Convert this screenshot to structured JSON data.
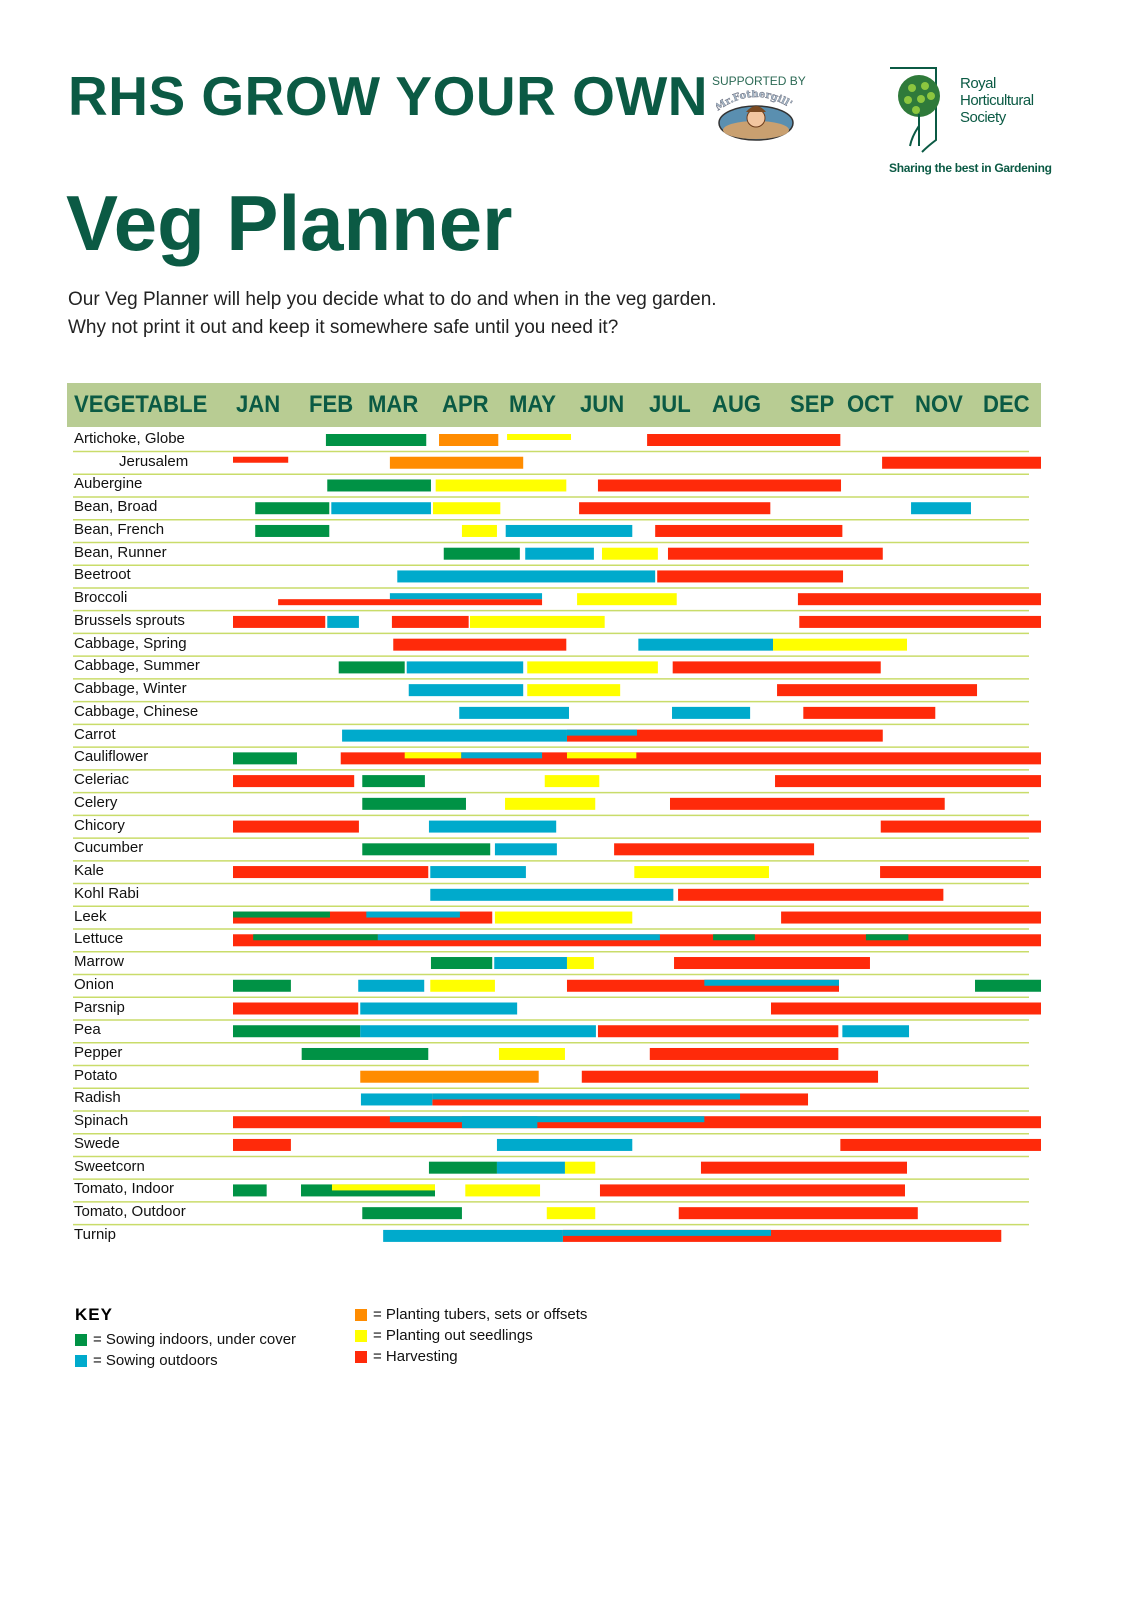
{
  "header": {
    "title": "RHS GROW YOUR OWN",
    "subtitle": "Veg Planner",
    "intro_lines": [
      "Our Veg Planner will help you decide what to do and when in the veg garden.",
      "Why not print it out and keep it somewhere safe until you need it?"
    ],
    "supported_by": "SUPPORTED BY",
    "sponsor_logo_text": "Mr.Fothergill's",
    "rhs_name_lines": [
      "Royal",
      "Horticultural",
      "Society"
    ],
    "rhs_tagline": "Sharing the best in Gardening"
  },
  "colors": {
    "header_band": "#b8cc93",
    "title_green": "#0b5a44",
    "row_divider": "#c9dc6a",
    "si": "#009245",
    "so": "#00aacc",
    "pt": "#ff8c00",
    "po": "#ffff00",
    "h": "#ff2a0a"
  },
  "chart_data": {
    "type": "gantt",
    "title": "Veg Planner",
    "column_header": "VEGETABLE",
    "months": [
      "JAN",
      "FEB",
      "MAR",
      "APR",
      "MAY",
      "JUN",
      "JUL",
      "AUG",
      "SEP",
      "OCT",
      "NOV",
      "DEC"
    ],
    "xlim_months": [
      0,
      12
    ],
    "activities": {
      "si": "Sowing indoors, under cover",
      "so": "Sowing outdoors",
      "pt": "Planting tubers, sets or offsets",
      "po": "Planting out seedlings",
      "h": "Harvesting"
    },
    "bar_format": "[activity, start_month, end_month, band(f=full,t=top half,b=bottom half)]",
    "rows": [
      {
        "name": "Artichoke, Globe",
        "bars": [
          [
            "si",
            1.38,
            2.87,
            "f"
          ],
          [
            "pt",
            3.06,
            3.94,
            "f"
          ],
          [
            "po",
            4.07,
            5.02,
            "t"
          ],
          [
            "h",
            6.15,
            9.02,
            "f"
          ]
        ]
      },
      {
        "name": "Jerusalem",
        "indent": true,
        "bars": [
          [
            "h",
            0,
            0.82,
            "t"
          ],
          [
            "pt",
            2.33,
            4.31,
            "f"
          ],
          [
            "h",
            9.64,
            12,
            "f"
          ]
        ]
      },
      {
        "name": "Aubergine",
        "bars": [
          [
            "si",
            1.4,
            2.94,
            "f"
          ],
          [
            "po",
            3.01,
            4.95,
            "f"
          ],
          [
            "h",
            5.42,
            9.03,
            "f"
          ]
        ]
      },
      {
        "name": "Bean, Broad",
        "bars": [
          [
            "si",
            0.33,
            1.43,
            "f"
          ],
          [
            "so",
            1.46,
            2.94,
            "f"
          ],
          [
            "po",
            2.97,
            3.97,
            "f"
          ],
          [
            "h",
            5.14,
            7.98,
            "f"
          ],
          [
            "so",
            10.07,
            10.96,
            "f"
          ]
        ]
      },
      {
        "name": "Bean, French",
        "bars": [
          [
            "si",
            0.33,
            1.43,
            "f"
          ],
          [
            "po",
            3.4,
            3.92,
            "f"
          ],
          [
            "so",
            4.05,
            5.93,
            "f"
          ],
          [
            "h",
            6.27,
            9.05,
            "f"
          ]
        ]
      },
      {
        "name": "Bean, Runner",
        "bars": [
          [
            "si",
            3.13,
            4.26,
            "f"
          ],
          [
            "so",
            4.34,
            5.36,
            "f"
          ],
          [
            "po",
            5.48,
            6.31,
            "f"
          ],
          [
            "h",
            6.46,
            9.65,
            "f"
          ]
        ]
      },
      {
        "name": "Beetroot",
        "bars": [
          [
            "so",
            2.44,
            6.27,
            "f"
          ],
          [
            "h",
            6.3,
            9.06,
            "f"
          ]
        ]
      },
      {
        "name": "Broccoli",
        "bars": [
          [
            "h",
            0.67,
            4.59,
            "b"
          ],
          [
            "so",
            2.33,
            4.59,
            "t"
          ],
          [
            "po",
            5.11,
            6.59,
            "f"
          ],
          [
            "h",
            8.39,
            12,
            "f"
          ]
        ]
      },
      {
        "name": "Brussels sprouts",
        "bars": [
          [
            "h",
            0,
            1.37,
            "f"
          ],
          [
            "so",
            1.4,
            1.87,
            "f"
          ],
          [
            "h",
            2.36,
            3.5,
            "f"
          ],
          [
            "po",
            3.52,
            5.52,
            "f"
          ],
          [
            "h",
            8.41,
            12,
            "f"
          ]
        ]
      },
      {
        "name": "Cabbage, Spring",
        "bars": [
          [
            "h",
            2.38,
            4.95,
            "f"
          ],
          [
            "so",
            6.02,
            8.02,
            "f"
          ],
          [
            "po",
            8.02,
            10.01,
            "f"
          ]
        ]
      },
      {
        "name": "Cabbage, Summer",
        "bars": [
          [
            "si",
            1.57,
            2.55,
            "f"
          ],
          [
            "so",
            2.58,
            4.31,
            "f"
          ],
          [
            "po",
            4.37,
            6.31,
            "f"
          ],
          [
            "h",
            6.53,
            9.62,
            "f"
          ]
        ]
      },
      {
        "name": "Cabbage, Winter",
        "bars": [
          [
            "so",
            2.61,
            4.31,
            "f"
          ],
          [
            "po",
            4.37,
            5.75,
            "f"
          ],
          [
            "h",
            8.08,
            11.05,
            "f"
          ]
        ]
      },
      {
        "name": "Cabbage, Chinese",
        "bars": [
          [
            "so",
            3.36,
            4.99,
            "f"
          ],
          [
            "so",
            6.52,
            7.68,
            "f"
          ],
          [
            "h",
            8.47,
            10.43,
            "f"
          ]
        ]
      },
      {
        "name": "Carrot",
        "bars": [
          [
            "h",
            4.96,
            9.65,
            "f"
          ],
          [
            "so",
            1.62,
            4.96,
            "f"
          ],
          [
            "so",
            4.96,
            6.0,
            "t"
          ]
        ]
      },
      {
        "name": "Cauliflower",
        "bars": [
          [
            "si",
            0,
            0.95,
            "f"
          ],
          [
            "h",
            1.6,
            12,
            "f"
          ],
          [
            "po",
            2.55,
            3.39,
            "t"
          ],
          [
            "so",
            3.39,
            4.59,
            "t"
          ],
          [
            "po",
            4.96,
            5.99,
            "t"
          ]
        ]
      },
      {
        "name": "Celeriac",
        "bars": [
          [
            "h",
            0,
            1.8,
            "f"
          ],
          [
            "si",
            1.92,
            2.85,
            "f"
          ],
          [
            "po",
            4.63,
            5.44,
            "f"
          ],
          [
            "h",
            8.05,
            12,
            "f"
          ]
        ]
      },
      {
        "name": "Celery",
        "bars": [
          [
            "si",
            1.92,
            3.46,
            "f"
          ],
          [
            "po",
            4.04,
            5.38,
            "f"
          ],
          [
            "h",
            6.49,
            10.57,
            "f"
          ]
        ]
      },
      {
        "name": "Chicory",
        "bars": [
          [
            "h",
            0,
            1.87,
            "f"
          ],
          [
            "so",
            2.91,
            4.8,
            "f"
          ],
          [
            "h",
            9.62,
            12,
            "f"
          ]
        ]
      },
      {
        "name": "Cucumber",
        "bars": [
          [
            "si",
            1.92,
            3.82,
            "f"
          ],
          [
            "so",
            3.89,
            4.81,
            "f"
          ],
          [
            "h",
            5.66,
            8.63,
            "f"
          ]
        ]
      },
      {
        "name": "Kale",
        "bars": [
          [
            "h",
            0,
            2.9,
            "f"
          ],
          [
            "so",
            2.93,
            4.35,
            "f"
          ],
          [
            "po",
            5.96,
            7.96,
            "f"
          ],
          [
            "h",
            9.61,
            12,
            "f"
          ]
        ]
      },
      {
        "name": "Kohl Rabi",
        "bars": [
          [
            "so",
            2.93,
            6.54,
            "f"
          ],
          [
            "h",
            6.61,
            10.55,
            "f"
          ]
        ]
      },
      {
        "name": "Leek",
        "bars": [
          [
            "h",
            0,
            3.85,
            "f"
          ],
          [
            "si",
            0,
            1.44,
            "t"
          ],
          [
            "so",
            1.98,
            3.37,
            "t"
          ],
          [
            "po",
            3.89,
            5.93,
            "f"
          ],
          [
            "h",
            8.14,
            12,
            "f"
          ]
        ]
      },
      {
        "name": "Lettuce",
        "bars": [
          [
            "h",
            0,
            12,
            "f"
          ],
          [
            "si",
            0.3,
            2.15,
            "t"
          ],
          [
            "so",
            2.15,
            6.34,
            "t"
          ],
          [
            "si",
            7.13,
            7.75,
            "t"
          ],
          [
            "si",
            9.4,
            10.03,
            "t"
          ]
        ]
      },
      {
        "name": "Marrow",
        "bars": [
          [
            "si",
            2.94,
            3.85,
            "f"
          ],
          [
            "so",
            3.88,
            4.96,
            "f"
          ],
          [
            "po",
            4.96,
            5.36,
            "f"
          ],
          [
            "h",
            6.55,
            9.46,
            "f"
          ]
        ]
      },
      {
        "name": "Onion",
        "bars": [
          [
            "si",
            0,
            0.86,
            "f"
          ],
          [
            "so",
            1.86,
            2.84,
            "f"
          ],
          [
            "po",
            2.93,
            3.89,
            "f"
          ],
          [
            "h",
            4.96,
            9.0,
            "f"
          ],
          [
            "so",
            7.0,
            9.0,
            "t"
          ],
          [
            "si",
            11.02,
            12,
            "f"
          ]
        ]
      },
      {
        "name": "Parsnip",
        "bars": [
          [
            "h",
            0,
            1.86,
            "f"
          ],
          [
            "so",
            1.89,
            4.22,
            "f"
          ],
          [
            "h",
            7.99,
            12,
            "f"
          ]
        ]
      },
      {
        "name": "Pea",
        "bars": [
          [
            "si",
            0,
            1.89,
            "f"
          ],
          [
            "so",
            1.89,
            5.39,
            "f"
          ],
          [
            "h",
            5.42,
            8.99,
            "f"
          ],
          [
            "so",
            9.05,
            10.04,
            "f"
          ]
        ]
      },
      {
        "name": "Pepper",
        "bars": [
          [
            "si",
            1.02,
            2.9,
            "f"
          ],
          [
            "po",
            3.95,
            4.93,
            "f"
          ],
          [
            "h",
            6.19,
            8.99,
            "f"
          ]
        ]
      },
      {
        "name": "Potato",
        "bars": [
          [
            "pt",
            1.89,
            4.54,
            "f"
          ],
          [
            "h",
            5.18,
            9.58,
            "f"
          ]
        ]
      },
      {
        "name": "Radish",
        "bars": [
          [
            "h",
            2.96,
            8.54,
            "f"
          ],
          [
            "so",
            1.9,
            2.96,
            "f"
          ],
          [
            "so",
            2.96,
            7.53,
            "t"
          ]
        ]
      },
      {
        "name": "Spinach",
        "bars": [
          [
            "h",
            0,
            12,
            "f"
          ],
          [
            "so",
            2.33,
            7.0,
            "t"
          ],
          [
            "so",
            3.4,
            4.52,
            "f"
          ]
        ]
      },
      {
        "name": "Swede",
        "bars": [
          [
            "h",
            0,
            0.86,
            "f"
          ],
          [
            "so",
            3.92,
            5.93,
            "f"
          ],
          [
            "h",
            9.02,
            12,
            "f"
          ]
        ]
      },
      {
        "name": "Sweetcorn",
        "bars": [
          [
            "si",
            2.91,
            3.92,
            "f"
          ],
          [
            "so",
            3.92,
            4.93,
            "f"
          ],
          [
            "po",
            4.93,
            5.38,
            "f"
          ],
          [
            "h",
            6.95,
            10.01,
            "f"
          ]
        ]
      },
      {
        "name": "Tomato, Indoor",
        "bars": [
          [
            "si",
            0,
            0.5,
            "f"
          ],
          [
            "si",
            1.01,
            3.0,
            "f"
          ],
          [
            "po",
            1.47,
            3.0,
            "t"
          ],
          [
            "po",
            3.45,
            4.56,
            "f"
          ],
          [
            "h",
            5.45,
            9.98,
            "f"
          ]
        ]
      },
      {
        "name": "Tomato, Outdoor",
        "bars": [
          [
            "si",
            1.92,
            3.4,
            "f"
          ],
          [
            "po",
            4.66,
            5.38,
            "f"
          ],
          [
            "h",
            6.62,
            10.17,
            "f"
          ]
        ]
      },
      {
        "name": "Turnip",
        "bars": [
          [
            "so",
            2.23,
            4.9,
            "f"
          ],
          [
            "h",
            4.9,
            11.41,
            "f"
          ],
          [
            "so",
            4.9,
            7.99,
            "t"
          ]
        ]
      }
    ]
  },
  "key": {
    "title": "KEY",
    "items": [
      {
        "code": "si",
        "label": "= Sowing indoors, under cover"
      },
      {
        "code": "so",
        "label": "= Sowing outdoors"
      },
      {
        "code": "pt",
        "label": "= Planting tubers, sets or offsets"
      },
      {
        "code": "po",
        "label": "= Planting out seedlings"
      },
      {
        "code": "h",
        "label": "= Harvesting"
      }
    ]
  }
}
